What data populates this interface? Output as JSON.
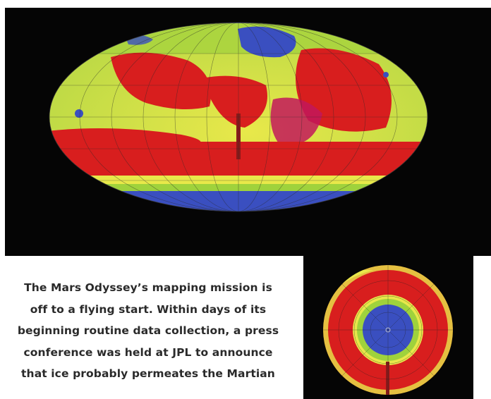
{
  "map_image": {
    "icon": "mars-global-hydrogen-map",
    "colors": {
      "background": "#050505",
      "ice_rich": "#3a4fc0",
      "moderate": "#9fd23c",
      "transition": "#e8e84a",
      "dry": "#d81e1e"
    }
  },
  "polar_image": {
    "icon": "mars-south-polar-hydrogen-map"
  },
  "article": {
    "lines": [
      "The Mars Odyssey’s mapping mission is",
      "off to a flying start.  Within days of its",
      "beginning routine data collection, a press",
      "conference was held at JPL to announce",
      "that ice probably permeates the Martian"
    ]
  }
}
